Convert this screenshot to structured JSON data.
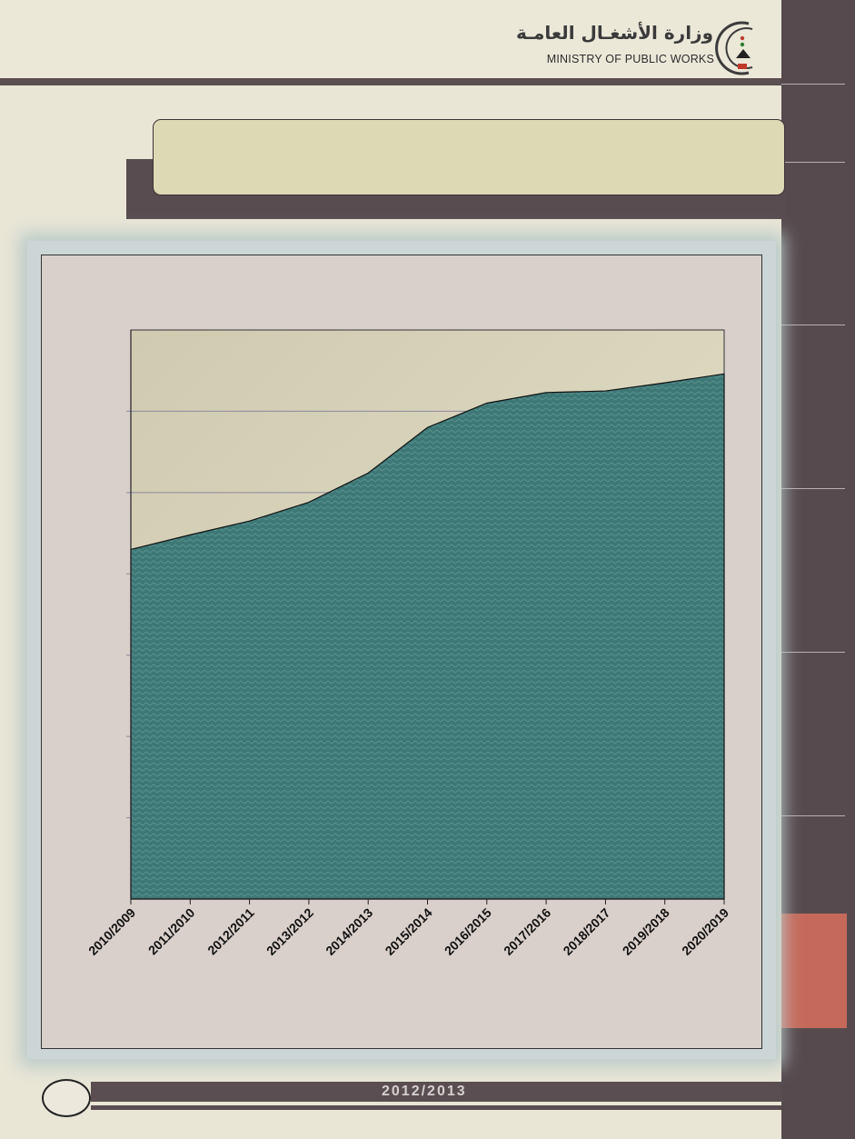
{
  "header": {
    "ministry_ar": "وزارة الأشغـال العامـة",
    "ministry_en": "MINISTRY OF PUBLIC WORKS"
  },
  "footer": {
    "year": "2012/2013"
  },
  "colors": {
    "sidebar": "#564a4e",
    "accent": "#c56a5b",
    "area_fill": "#3f7b78",
    "plot_bg": "#dcd7be"
  },
  "chart_data": {
    "type": "area",
    "categories": [
      "2010/2009",
      "2011/2010",
      "2012/2011",
      "2013/2012",
      "2014/2013",
      "2015/2014",
      "2016/2015",
      "2017/2016",
      "2018/2017",
      "2019/2018",
      "2020/2019"
    ],
    "values": [
      4.3,
      4.48,
      4.65,
      4.88,
      5.24,
      5.8,
      6.1,
      6.23,
      6.25,
      6.35,
      6.46
    ],
    "ylim": [
      0,
      7
    ],
    "y_gridlines": 7,
    "grid": true,
    "legend": "none"
  }
}
